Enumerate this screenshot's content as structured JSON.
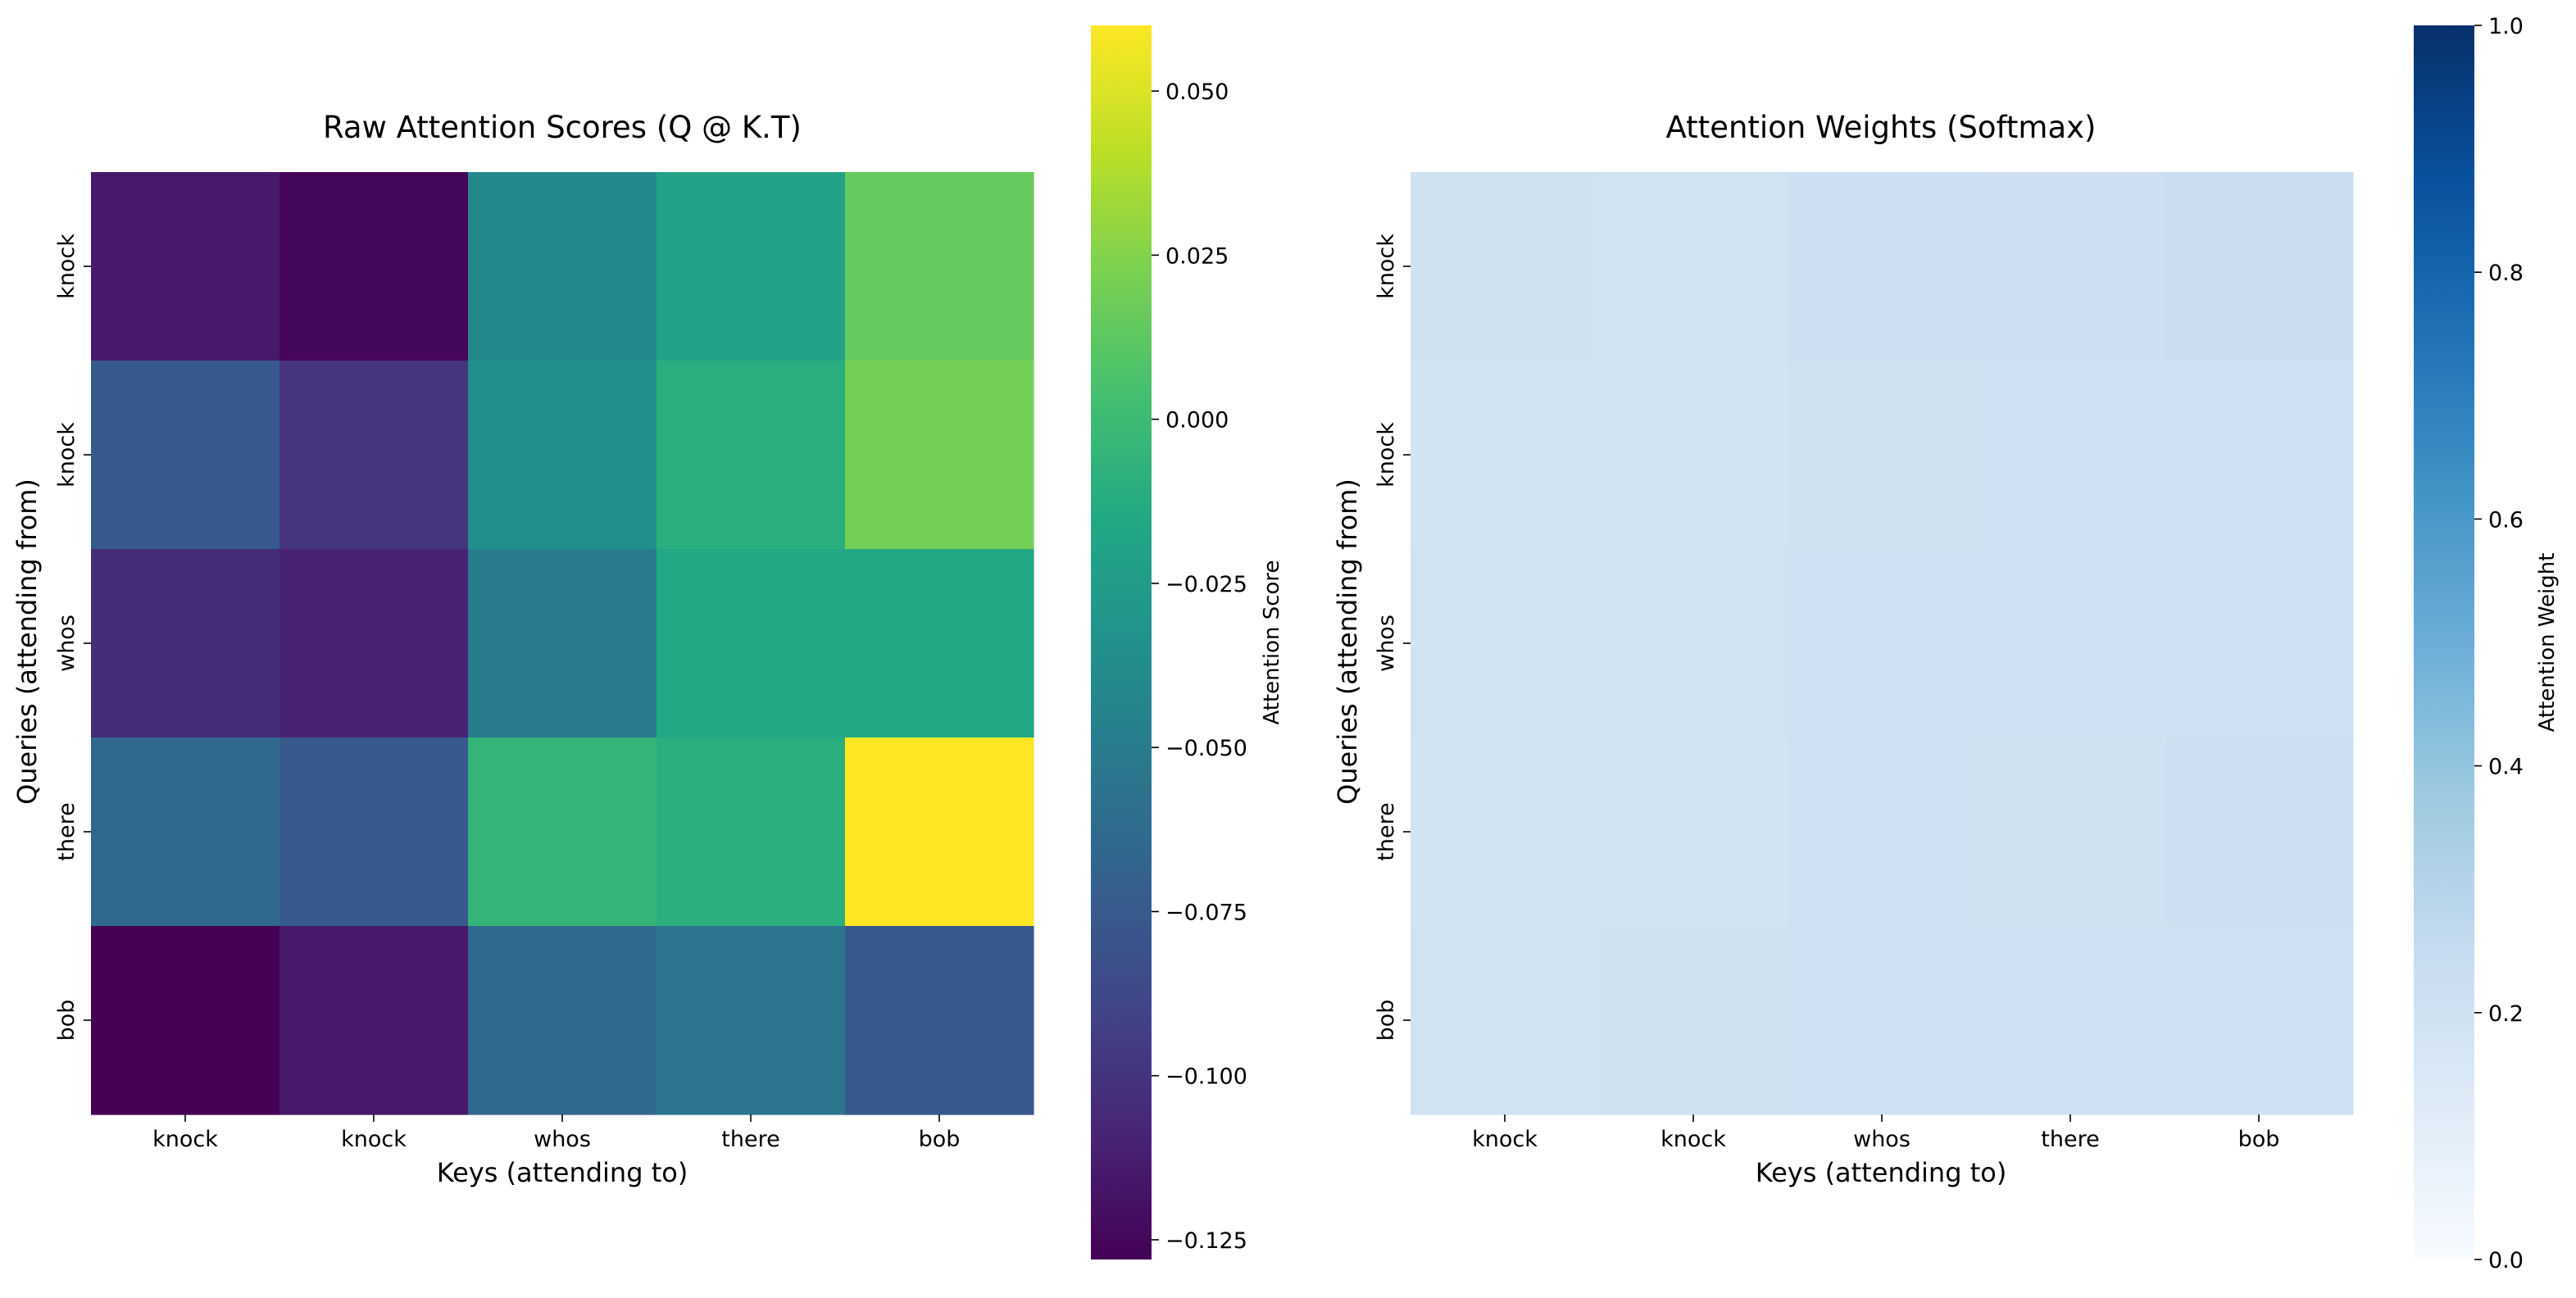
{
  "chart_data": [
    {
      "type": "heatmap",
      "title": "Raw Attention Scores (Q @ K.T)",
      "xlabel": "Keys (attending to)",
      "ylabel": "Queries (attending from)",
      "x_tick_labels": [
        "knock",
        "knock",
        "whos",
        "there",
        "bob"
      ],
      "y_tick_labels": [
        "knock",
        "knock",
        "whos",
        "there",
        "bob"
      ],
      "values": [
        [
          -0.115,
          -0.125,
          -0.04,
          -0.02,
          0.015
        ],
        [
          -0.075,
          -0.1,
          -0.035,
          -0.01,
          0.02
        ],
        [
          -0.105,
          -0.11,
          -0.05,
          -0.015,
          -0.015
        ],
        [
          -0.065,
          -0.075,
          -0.005,
          -0.01,
          0.06
        ],
        [
          -0.128,
          -0.115,
          -0.065,
          -0.055,
          -0.075
        ]
      ],
      "colormap": "viridis",
      "vmin": -0.128,
      "vmax": 0.06,
      "colorbar": {
        "label": "Attention Score",
        "ticks": [
          0.05,
          0.025,
          0.0,
          -0.025,
          -0.05,
          -0.075,
          -0.1,
          -0.125
        ],
        "tick_labels": [
          "0.050",
          "0.025",
          "0.000",
          "−0.025",
          "−0.050",
          "−0.075",
          "−0.100",
          "−0.125"
        ]
      }
    },
    {
      "type": "heatmap",
      "title": "Attention Weights (Softmax)",
      "xlabel": "Keys (attending to)",
      "ylabel": "Queries (attending from)",
      "x_tick_labels": [
        "knock",
        "knock",
        "whos",
        "there",
        "bob"
      ],
      "y_tick_labels": [
        "knock",
        "knock",
        "whos",
        "there",
        "bob"
      ],
      "values": [
        [
          0.196,
          0.194,
          0.211,
          0.215,
          0.223
        ],
        [
          0.19,
          0.185,
          0.197,
          0.202,
          0.208
        ],
        [
          0.193,
          0.191,
          0.203,
          0.21,
          0.21
        ],
        [
          0.189,
          0.188,
          0.201,
          0.2,
          0.214
        ],
        [
          0.193,
          0.196,
          0.206,
          0.208,
          0.204
        ]
      ],
      "colormap": "Blues",
      "vmin": 0.0,
      "vmax": 1.0,
      "colorbar": {
        "label": "Attention Weight",
        "ticks": [
          1.0,
          0.8,
          0.6,
          0.4,
          0.2,
          0.0
        ],
        "tick_labels": [
          "1.0",
          "0.8",
          "0.6",
          "0.4",
          "0.2",
          "0.0"
        ]
      }
    }
  ]
}
